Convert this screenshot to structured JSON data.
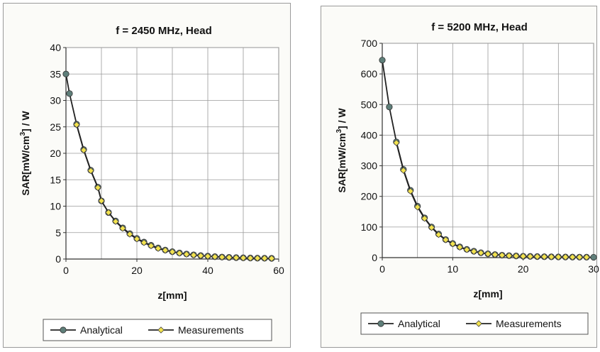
{
  "chart_data": [
    {
      "type": "line",
      "title": "f = 2450 MHz,  Head",
      "xlabel": "z[mm]",
      "ylabel_prefix": "SAR[mW/cm",
      "ylabel_sup": "3",
      "ylabel_suffix": "] / W",
      "xlim": [
        0,
        60
      ],
      "ylim": [
        0,
        40
      ],
      "xticks": [
        0,
        20,
        40,
        60
      ],
      "yticks": [
        0,
        5,
        10,
        15,
        20,
        25,
        30,
        35,
        40
      ],
      "grid": true,
      "legend_position": "bottom",
      "series": [
        {
          "name": "Analytical",
          "marker": "circle",
          "color": "#5f7f7a",
          "x": [
            0,
            1,
            3,
            5,
            7,
            9,
            10,
            12,
            14,
            16,
            18,
            20,
            22,
            24,
            26,
            28,
            30,
            32,
            34,
            36,
            38,
            40,
            42,
            44,
            46,
            48,
            50,
            52,
            54,
            56,
            58
          ],
          "y": [
            35.0,
            31.3,
            25.5,
            20.7,
            16.8,
            13.6,
            11.0,
            8.8,
            7.2,
            5.9,
            4.8,
            3.9,
            3.2,
            2.6,
            2.1,
            1.7,
            1.4,
            1.15,
            0.95,
            0.8,
            0.65,
            0.55,
            0.45,
            0.38,
            0.32,
            0.27,
            0.23,
            0.2,
            0.17,
            0.15,
            0.13
          ]
        },
        {
          "name": "Measurements",
          "marker": "diamond",
          "color": "#f2e24e",
          "x": [
            3,
            5,
            7,
            9,
            10,
            12,
            14,
            16,
            18,
            20,
            22,
            24,
            26,
            28,
            30,
            32,
            34,
            36,
            38,
            40,
            42,
            44,
            46,
            48,
            50,
            52,
            54,
            56,
            58
          ],
          "y": [
            25.4,
            20.6,
            16.7,
            13.5,
            11.0,
            8.8,
            7.1,
            5.8,
            4.7,
            3.8,
            3.1,
            2.5,
            2.0,
            1.65,
            1.35,
            1.1,
            0.9,
            0.75,
            0.62,
            0.52,
            0.43,
            0.36,
            0.3,
            0.25,
            0.21,
            0.18,
            0.16,
            0.14,
            0.12
          ]
        }
      ]
    },
    {
      "type": "line",
      "title": "f = 5200 MHz,  Head",
      "xlabel": "z[mm]",
      "ylabel_prefix": "SAR[mW/cm",
      "ylabel_sup": "3",
      "ylabel_suffix": "] / W",
      "xlim": [
        0,
        30
      ],
      "ylim": [
        0,
        700
      ],
      "xticks": [
        0,
        10,
        20,
        30
      ],
      "yticks": [
        0,
        100,
        200,
        300,
        400,
        500,
        600,
        700
      ],
      "grid": true,
      "legend_position": "bottom",
      "series": [
        {
          "name": "Analytical",
          "marker": "circle",
          "color": "#5f7f7a",
          "x": [
            0,
            1,
            2,
            3,
            4,
            5,
            6,
            7,
            8,
            9,
            10,
            11,
            12,
            13,
            14,
            15,
            16,
            17,
            18,
            19,
            20,
            21,
            22,
            23,
            24,
            25,
            26,
            27,
            28,
            29,
            30
          ],
          "y": [
            645,
            492,
            378,
            288,
            220,
            168,
            130,
            100,
            77,
            59,
            46,
            35,
            27,
            21,
            16,
            12.5,
            10,
            8,
            6.5,
            5.5,
            4.5,
            4,
            3.5,
            3,
            2.6,
            2.3,
            2,
            1.8,
            1.6,
            1.4,
            1.2
          ]
        },
        {
          "name": "Measurements",
          "marker": "diamond",
          "color": "#f2e24e",
          "x": [
            2,
            3,
            4,
            5,
            6,
            7,
            8,
            9,
            10,
            11,
            12,
            13,
            14,
            15,
            16,
            17,
            18,
            19,
            20,
            21,
            22,
            23,
            24,
            25,
            26,
            27,
            28,
            29
          ],
          "y": [
            375,
            285,
            217,
            165,
            128,
            98,
            75,
            58,
            45,
            34,
            26,
            20,
            15.5,
            12,
            9.8,
            7.8,
            6.3,
            5.3,
            4.4,
            3.8,
            3.3,
            2.9,
            2.5,
            2.2,
            1.9,
            1.7,
            1.5,
            1.3
          ]
        }
      ]
    }
  ]
}
